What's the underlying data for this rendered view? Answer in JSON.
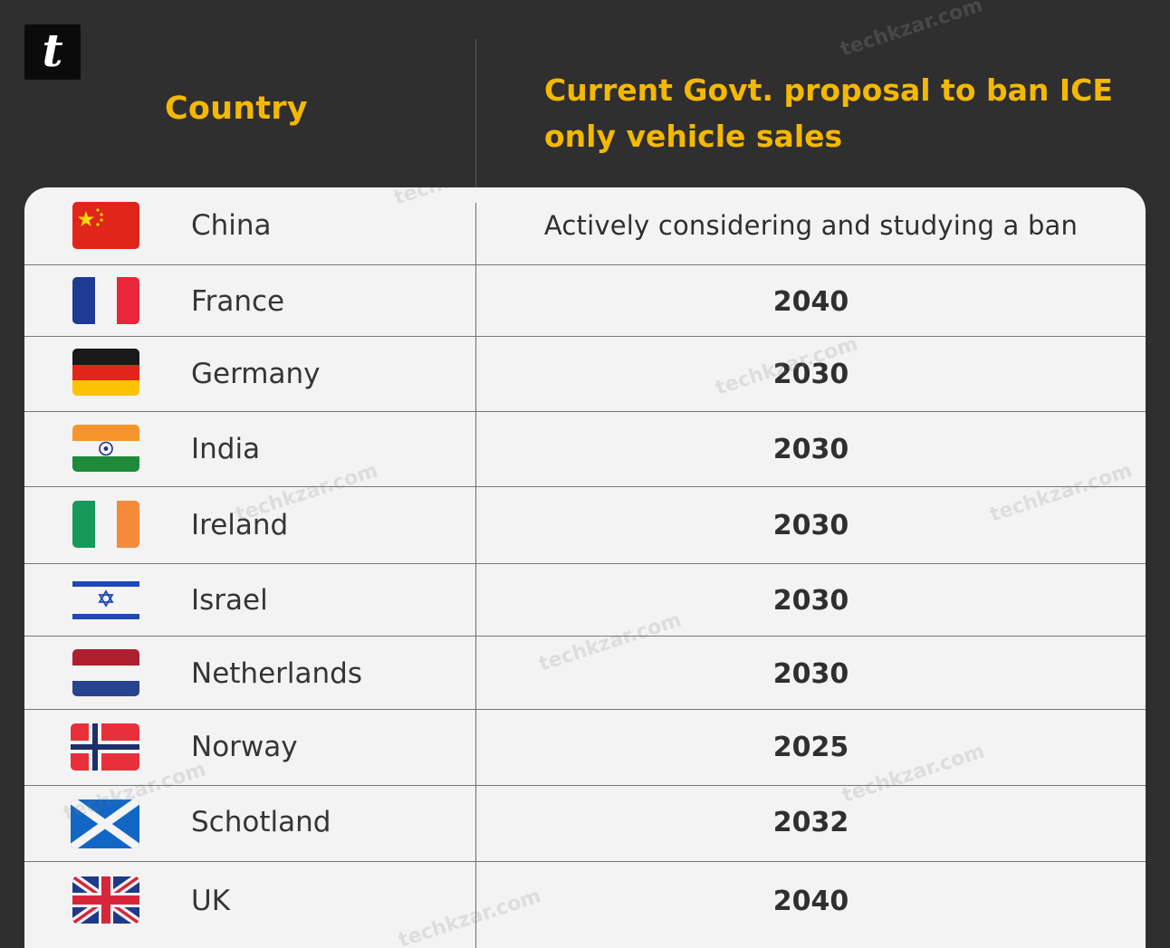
{
  "logo": {
    "letter": "t"
  },
  "header": {
    "country_label": "Country",
    "proposal_label": "Current Govt. proposal to ban ICE only vehicle sales"
  },
  "watermark": "techkzar.com",
  "rows": [
    {
      "country": "China",
      "value": "Actively considering and studying a ban",
      "flag": "china-flag-icon"
    },
    {
      "country": "France",
      "value": "2040",
      "flag": "france-flag-icon"
    },
    {
      "country": "Germany",
      "value": "2030",
      "flag": "germany-flag-icon"
    },
    {
      "country": "India",
      "value": "2030",
      "flag": "india-flag-icon"
    },
    {
      "country": "Ireland",
      "value": "2030",
      "flag": "ireland-flag-icon"
    },
    {
      "country": "Israel",
      "value": "2030",
      "flag": "israel-flag-icon"
    },
    {
      "country": "Netherlands",
      "value": "2030",
      "flag": "netherlands-flag-icon"
    },
    {
      "country": "Norway",
      "value": "2025",
      "flag": "norway-flag-icon"
    },
    {
      "country": "Schotland",
      "value": "2032",
      "flag": "scotland-flag-icon"
    },
    {
      "country": "UK",
      "value": "2040",
      "flag": "uk-flag-icon"
    }
  ]
}
